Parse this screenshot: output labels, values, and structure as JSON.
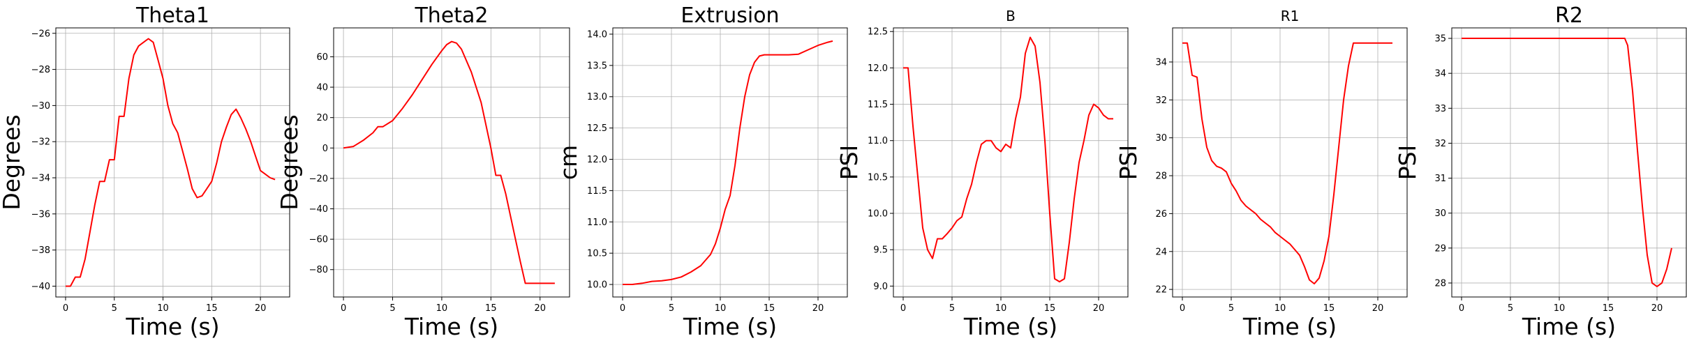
{
  "colors": {
    "line": "#ff0000",
    "grid": "#b0b0b0",
    "axes": "#000000",
    "background": "#ffffff"
  },
  "chart_data": [
    {
      "type": "line",
      "title": "Theta1",
      "title_size": "large",
      "xlabel": "Time (s)",
      "ylabel": "Degrees",
      "xlim": [
        -1,
        23
      ],
      "ylim": [
        -40.6,
        -25.7
      ],
      "grid": true,
      "xticks": [
        0,
        5,
        10,
        15,
        20
      ],
      "xtick_labels": [
        "0",
        "5",
        "10",
        "15",
        "20"
      ],
      "yticks": [
        -40,
        -38,
        -36,
        -34,
        -32,
        -30,
        -28,
        -26
      ],
      "ytick_labels": [
        "−40",
        "−38",
        "−36",
        "−34",
        "−32",
        "−30",
        "−28",
        "−26"
      ],
      "series": [
        {
          "x": [
            0,
            0.5,
            1,
            1.5,
            2,
            2.5,
            3,
            3.5,
            4,
            4.5,
            5,
            5.5,
            6,
            6.5,
            7,
            7.5,
            8,
            8.5,
            9,
            9.5,
            10,
            10.5,
            11,
            11.5,
            12,
            12.5,
            13,
            13.5,
            14,
            14.5,
            15,
            15.5,
            16,
            16.5,
            17,
            17.5,
            18,
            18.5,
            19,
            19.5,
            20,
            20.5,
            21,
            21.5
          ],
          "y": [
            -40,
            -40,
            -39.5,
            -39.5,
            -38.5,
            -37,
            -35.5,
            -34.2,
            -34.2,
            -33,
            -33,
            -30.6,
            -30.6,
            -28.5,
            -27.2,
            -26.7,
            -26.5,
            -26.3,
            -26.5,
            -27.5,
            -28.5,
            -30,
            -31,
            -31.5,
            -32.5,
            -33.5,
            -34.6,
            -35.1,
            -35,
            -34.6,
            -34.2,
            -33.2,
            -32,
            -31.2,
            -30.5,
            -30.2,
            -30.7,
            -31.3,
            -32,
            -32.8,
            -33.6,
            -33.8,
            -34,
            -34.1
          ]
        }
      ]
    },
    {
      "type": "line",
      "title": "Theta2",
      "title_size": "large",
      "xlabel": "Time (s)",
      "ylabel": "Degrees",
      "xlim": [
        -1,
        23
      ],
      "ylim": [
        -98,
        79
      ],
      "grid": true,
      "xticks": [
        0,
        5,
        10,
        15,
        20
      ],
      "xtick_labels": [
        "0",
        "5",
        "10",
        "15",
        "20"
      ],
      "yticks": [
        -80,
        -60,
        -40,
        -20,
        0,
        20,
        40,
        60
      ],
      "ytick_labels": [
        "−80",
        "−60",
        "−40",
        "−20",
        "0",
        "20",
        "40",
        "60"
      ],
      "series": [
        {
          "x": [
            0,
            1,
            2,
            3,
            3.5,
            4,
            5,
            6,
            7,
            8,
            9,
            10,
            10.5,
            11,
            11.5,
            12,
            13,
            14,
            14.5,
            15,
            15.5,
            16,
            16.5,
            17,
            17.5,
            18,
            18.5,
            19,
            20,
            21,
            21.5
          ],
          "y": [
            0,
            1,
            5,
            10,
            14,
            14,
            18,
            26,
            35,
            45,
            55,
            64,
            68,
            70,
            69,
            65,
            50,
            30,
            15,
            0,
            -18,
            -18,
            -30,
            -45,
            -60,
            -75,
            -89,
            -89,
            -89,
            -89,
            -89
          ]
        }
      ]
    },
    {
      "type": "line",
      "title": "Extrusion",
      "title_size": "large",
      "xlabel": "Time (s)",
      "ylabel": "cm",
      "xlim": [
        -1,
        23
      ],
      "ylim": [
        9.8,
        14.1
      ],
      "grid": true,
      "xticks": [
        0,
        5,
        10,
        15,
        20
      ],
      "xtick_labels": [
        "0",
        "5",
        "10",
        "15",
        "20"
      ],
      "yticks": [
        10.0,
        10.5,
        11.0,
        11.5,
        12.0,
        12.5,
        13.0,
        13.5,
        14.0
      ],
      "ytick_labels": [
        "10.0",
        "10.5",
        "11.0",
        "11.5",
        "12.0",
        "12.5",
        "13.0",
        "13.5",
        "14.0"
      ],
      "series": [
        {
          "x": [
            0,
            1,
            2,
            3,
            4,
            5,
            6,
            7,
            8,
            9,
            9.5,
            10,
            10.5,
            11,
            11.5,
            12,
            12.5,
            13,
            13.5,
            14,
            14.5,
            15,
            16,
            17,
            18,
            19,
            20,
            21,
            21.5
          ],
          "y": [
            10.0,
            10.0,
            10.02,
            10.05,
            10.06,
            10.08,
            10.12,
            10.2,
            10.3,
            10.48,
            10.65,
            10.9,
            11.2,
            11.42,
            11.9,
            12.5,
            13.0,
            13.35,
            13.55,
            13.65,
            13.67,
            13.67,
            13.67,
            13.67,
            13.68,
            13.75,
            13.82,
            13.87,
            13.89
          ]
        }
      ]
    },
    {
      "type": "line",
      "title": "B",
      "title_size": "small",
      "xlabel": "Time (s)",
      "ylabel": "PSI",
      "xlim": [
        -1,
        23
      ],
      "ylim": [
        8.85,
        12.55
      ],
      "grid": true,
      "xticks": [
        0,
        5,
        10,
        15,
        20
      ],
      "xtick_labels": [
        "0",
        "5",
        "10",
        "15",
        "20"
      ],
      "yticks": [
        9.0,
        9.5,
        10.0,
        10.5,
        11.0,
        11.5,
        12.0,
        12.5
      ],
      "ytick_labels": [
        "9.0",
        "9.5",
        "10.0",
        "10.5",
        "11.0",
        "11.5",
        "12.0",
        "12.5"
      ],
      "series": [
        {
          "x": [
            0,
            0.5,
            1,
            1.5,
            2,
            2.5,
            3,
            3.5,
            4,
            4.5,
            5,
            5.5,
            6,
            6.5,
            7,
            7.5,
            8,
            8.5,
            9,
            9.5,
            10,
            10.5,
            11,
            11.5,
            12,
            12.5,
            13,
            13.5,
            14,
            14.5,
            15,
            15.5,
            16,
            16.5,
            17,
            17.5,
            18,
            18.5,
            19,
            19.5,
            20,
            20.5,
            21,
            21.5
          ],
          "y": [
            12.0,
            12.0,
            11.2,
            10.5,
            9.8,
            9.5,
            9.38,
            9.65,
            9.65,
            9.72,
            9.8,
            9.9,
            9.95,
            10.2,
            10.4,
            10.7,
            10.95,
            11.0,
            11.0,
            10.9,
            10.85,
            10.95,
            10.9,
            11.3,
            11.6,
            12.2,
            12.42,
            12.3,
            11.8,
            11.0,
            10.0,
            9.1,
            9.06,
            9.1,
            9.6,
            10.2,
            10.7,
            11.0,
            11.35,
            11.5,
            11.45,
            11.35,
            11.3,
            11.3
          ]
        }
      ]
    },
    {
      "type": "line",
      "title": "R1",
      "title_size": "small",
      "xlabel": "Time (s)",
      "ylabel": "PSI",
      "xlim": [
        -1,
        23
      ],
      "ylim": [
        21.6,
        35.8
      ],
      "grid": true,
      "xticks": [
        0,
        5,
        10,
        15,
        20
      ],
      "xtick_labels": [
        "0",
        "5",
        "10",
        "15",
        "20"
      ],
      "yticks": [
        22,
        24,
        26,
        28,
        30,
        32,
        34
      ],
      "ytick_labels": [
        "22",
        "24",
        "26",
        "28",
        "30",
        "32",
        "34"
      ],
      "series": [
        {
          "x": [
            0,
            0.5,
            1,
            1.5,
            2,
            2.5,
            3,
            3.5,
            4,
            4.5,
            5,
            5.5,
            6,
            6.5,
            7,
            7.5,
            8,
            8.5,
            9,
            9.5,
            10,
            10.5,
            11,
            11.5,
            12,
            12.5,
            13,
            13.5,
            14,
            14.5,
            15,
            15.5,
            16,
            16.5,
            17,
            17.5,
            18,
            18.5,
            19,
            19.5,
            20,
            20.5,
            21,
            21.5
          ],
          "y": [
            35,
            35,
            33.3,
            33.2,
            31,
            29.5,
            28.8,
            28.5,
            28.4,
            28.2,
            27.6,
            27.2,
            26.7,
            26.4,
            26.2,
            26.0,
            25.7,
            25.5,
            25.3,
            25.0,
            24.8,
            24.6,
            24.4,
            24.1,
            23.8,
            23.2,
            22.5,
            22.3,
            22.6,
            23.5,
            24.8,
            27,
            29.5,
            32,
            33.8,
            35,
            35,
            35,
            35,
            35,
            35,
            35,
            35,
            35
          ]
        }
      ]
    },
    {
      "type": "line",
      "title": "R2",
      "title_size": "large",
      "xlabel": "Time (s)",
      "ylabel": "PSI",
      "xlim": [
        -1,
        23
      ],
      "ylim": [
        27.6,
        35.3
      ],
      "grid": true,
      "xticks": [
        0,
        5,
        10,
        15,
        20
      ],
      "xtick_labels": [
        "0",
        "5",
        "10",
        "15",
        "20"
      ],
      "yticks": [
        28,
        29,
        30,
        31,
        32,
        33,
        34,
        35
      ],
      "ytick_labels": [
        "28",
        "29",
        "30",
        "31",
        "32",
        "33",
        "34",
        "35"
      ],
      "series": [
        {
          "x": [
            0,
            2,
            4,
            6,
            8,
            10,
            12,
            14,
            16,
            16.7,
            17,
            17.5,
            18,
            18.5,
            19,
            19.5,
            20,
            20.5,
            21,
            21.5
          ],
          "y": [
            35,
            35,
            35,
            35,
            35,
            35,
            35,
            35,
            35,
            35,
            34.8,
            33.5,
            31.8,
            30.2,
            28.8,
            28.0,
            27.9,
            28.0,
            28.4,
            29.0
          ]
        }
      ]
    }
  ]
}
